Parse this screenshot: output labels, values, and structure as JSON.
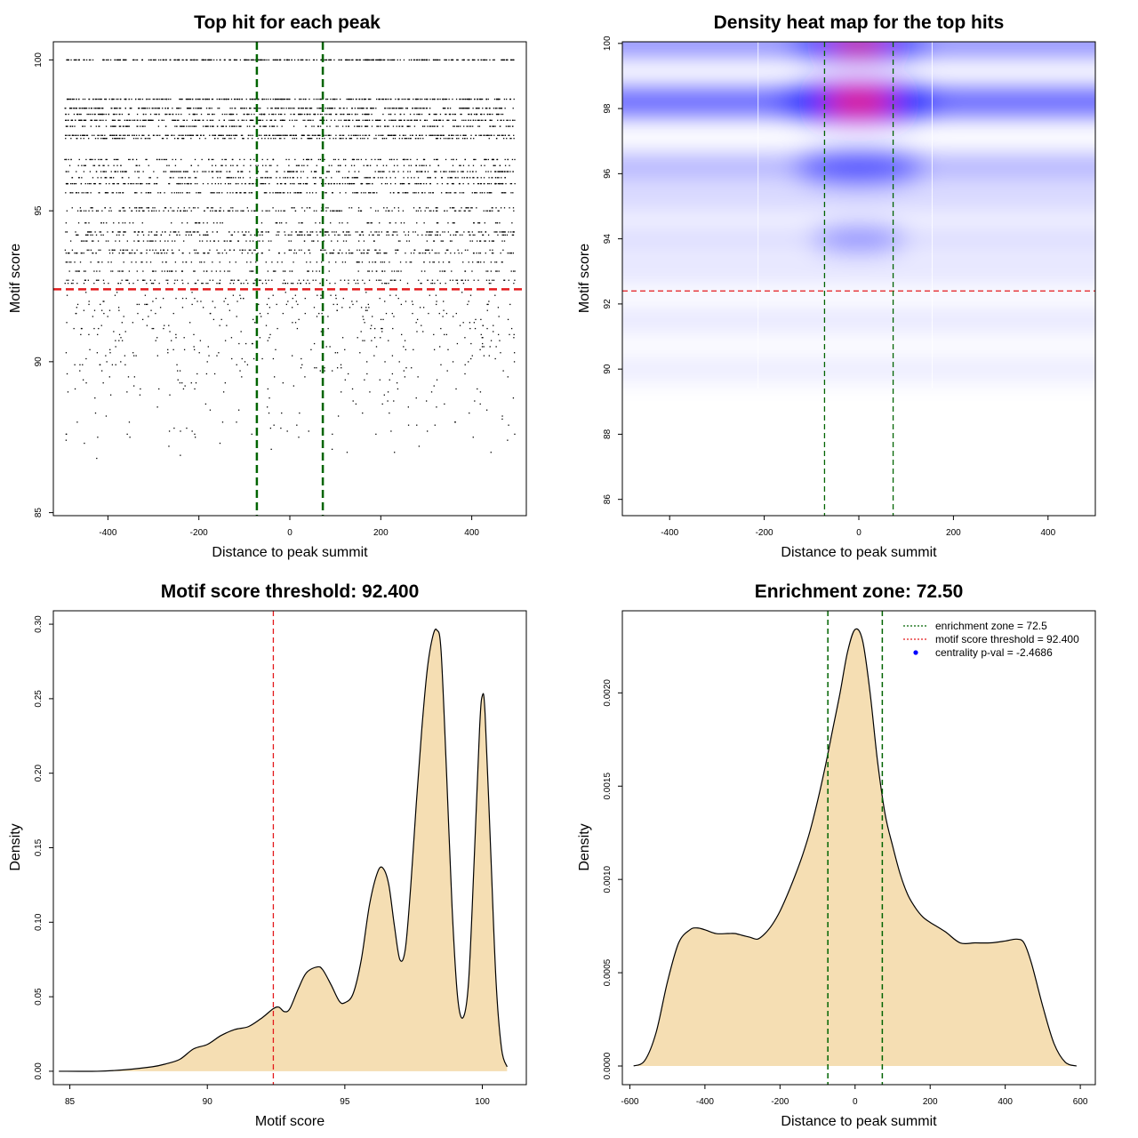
{
  "colors": {
    "threshold": "#e31a1c",
    "zone": "#006400",
    "fill": "#f5deb3",
    "points": "#000000",
    "heat_low": "#ffffff",
    "heat_mid": "#0000ff",
    "heat_high": "#ff0000",
    "legend_point": "#0000ff"
  },
  "chart_data": [
    {
      "type": "scatter",
      "title": "Top hit for each peak",
      "xlabel": "Distance to peak summit",
      "ylabel": "Motif score",
      "xlim": [
        -500,
        500
      ],
      "ylim": [
        85,
        100
      ],
      "xticks": [
        "-400",
        "-200",
        "0",
        "200",
        "400"
      ],
      "yticks": [
        "85",
        "90",
        "95",
        "100"
      ],
      "score_levels": [
        {
          "y": 100.0,
          "n": 360
        },
        {
          "y": 98.7,
          "n": 300
        },
        {
          "y": 98.4,
          "n": 280
        },
        {
          "y": 98.2,
          "n": 220
        },
        {
          "y": 98.0,
          "n": 260
        },
        {
          "y": 97.8,
          "n": 200
        },
        {
          "y": 97.5,
          "n": 300
        },
        {
          "y": 97.4,
          "n": 160
        },
        {
          "y": 96.7,
          "n": 140
        },
        {
          "y": 96.5,
          "n": 100
        },
        {
          "y": 96.3,
          "n": 180
        },
        {
          "y": 96.1,
          "n": 150
        },
        {
          "y": 95.9,
          "n": 220
        },
        {
          "y": 95.6,
          "n": 190
        },
        {
          "y": 95.1,
          "n": 90
        },
        {
          "y": 95.0,
          "n": 140
        },
        {
          "y": 94.6,
          "n": 80
        },
        {
          "y": 94.3,
          "n": 170
        },
        {
          "y": 94.2,
          "n": 120
        },
        {
          "y": 94.0,
          "n": 100
        },
        {
          "y": 93.7,
          "n": 90
        },
        {
          "y": 93.6,
          "n": 130
        },
        {
          "y": 93.3,
          "n": 90
        },
        {
          "y": 93.0,
          "n": 100
        },
        {
          "y": 92.7,
          "n": 90
        },
        {
          "y": 92.6,
          "n": 80
        }
      ],
      "scatter_range": [
        86.3,
        92.3
      ],
      "threshold_y": 92.4,
      "zone_x": [
        -72.5,
        72.5
      ]
    },
    {
      "type": "heatmap",
      "title": "Density heat map for the top hits",
      "xlabel": "Distance to peak summit",
      "ylabel": "Motif score",
      "xlim": [
        -500,
        500
      ],
      "ylim": [
        85.5,
        100
      ],
      "xticks": [
        "-400",
        "-200",
        "0",
        "200",
        "400"
      ],
      "yticks": [
        "86",
        "88",
        "90",
        "92",
        "94",
        "96",
        "98",
        "100"
      ],
      "threshold_y": 92.4,
      "zone_x": [
        -72.5,
        72.5
      ],
      "bands": [
        {
          "y": 100.0,
          "strength": 0.75
        },
        {
          "y": 98.2,
          "strength": 1.0
        },
        {
          "y": 96.2,
          "strength": 0.5
        },
        {
          "y": 95.2,
          "strength": 0.25
        },
        {
          "y": 94.0,
          "strength": 0.2
        },
        {
          "y": 93.0,
          "strength": 0.12
        },
        {
          "y": 91.5,
          "strength": 0.08
        },
        {
          "y": 90.0,
          "strength": 0.05
        }
      ],
      "hotspots": [
        {
          "x": 0,
          "y": 98.2,
          "strength": 1.0
        },
        {
          "x": 0,
          "y": 100.0,
          "strength": 0.8
        },
        {
          "x": 0,
          "y": 96.2,
          "strength": 0.7
        },
        {
          "x": 0,
          "y": 94.0,
          "strength": 0.4
        }
      ]
    },
    {
      "type": "area",
      "title": "Motif score threshold: 92.400",
      "xlabel": "Motif score",
      "ylabel": "Density",
      "xlim": [
        84.5,
        101
      ],
      "ylim": [
        0,
        0.3
      ],
      "xticks": [
        "85",
        "90",
        "95",
        "100"
      ],
      "yticks": [
        "0.00",
        "0.05",
        "0.10",
        "0.15",
        "0.20",
        "0.25",
        "0.30"
      ],
      "threshold_x": 92.4,
      "x": [
        84.6,
        86,
        87,
        88,
        88.5,
        89,
        89.5,
        90,
        90.5,
        91,
        91.5,
        92,
        92.4,
        92.6,
        92.8,
        93,
        93.3,
        93.6,
        94,
        94.2,
        94.5,
        94.8,
        95,
        95.3,
        95.6,
        95.9,
        96.2,
        96.4,
        96.6,
        96.8,
        97,
        97.2,
        97.4,
        97.6,
        97.8,
        98,
        98.2,
        98.35,
        98.5,
        98.7,
        98.9,
        99.1,
        99.3,
        99.5,
        99.7,
        99.9,
        100.0,
        100.1,
        100.3,
        100.5,
        100.7,
        100.9
      ],
      "values": [
        0.0,
        0.0,
        0.001,
        0.003,
        0.005,
        0.008,
        0.015,
        0.018,
        0.024,
        0.028,
        0.03,
        0.036,
        0.042,
        0.043,
        0.04,
        0.042,
        0.055,
        0.066,
        0.07,
        0.068,
        0.058,
        0.047,
        0.046,
        0.052,
        0.075,
        0.112,
        0.134,
        0.136,
        0.125,
        0.098,
        0.075,
        0.082,
        0.125,
        0.18,
        0.23,
        0.27,
        0.292,
        0.296,
        0.282,
        0.2,
        0.11,
        0.05,
        0.036,
        0.06,
        0.14,
        0.23,
        0.252,
        0.24,
        0.15,
        0.06,
        0.015,
        0.003
      ]
    },
    {
      "type": "area",
      "title": "Enrichment zone: 72.50",
      "xlabel": "Distance to peak summit",
      "ylabel": "Density",
      "xlim": [
        -600,
        600
      ],
      "ylim": [
        0,
        0.0024
      ],
      "xticks": [
        "-600",
        "-400",
        "-200",
        "0",
        "200",
        "400",
        "600"
      ],
      "yticks": [
        "0.0000",
        "0.0005",
        "0.0010",
        "0.0015",
        "0.0020"
      ],
      "zone_x": [
        -72.5,
        72.5
      ],
      "x": [
        -590,
        -560,
        -530,
        -500,
        -470,
        -440,
        -420,
        -400,
        -370,
        -340,
        -320,
        -300,
        -280,
        -260,
        -240,
        -220,
        -200,
        -180,
        -160,
        -140,
        -120,
        -100,
        -80,
        -60,
        -40,
        -20,
        0,
        20,
        40,
        60,
        80,
        100,
        120,
        140,
        160,
        180,
        200,
        240,
        280,
        320,
        360,
        400,
        430,
        450,
        470,
        500,
        530,
        560,
        590
      ],
      "values": [
        0.0,
        3e-05,
        0.00018,
        0.00045,
        0.00066,
        0.00073,
        0.00074,
        0.00073,
        0.00071,
        0.00071,
        0.00071,
        0.0007,
        0.00069,
        0.00068,
        0.00071,
        0.00076,
        0.00083,
        0.00092,
        0.00102,
        0.00113,
        0.00126,
        0.00142,
        0.0016,
        0.0018,
        0.002,
        0.00222,
        0.00234,
        0.00228,
        0.002,
        0.00163,
        0.00135,
        0.00118,
        0.00103,
        0.00092,
        0.00085,
        0.0008,
        0.00077,
        0.00072,
        0.00066,
        0.00066,
        0.00066,
        0.00067,
        0.00068,
        0.00066,
        0.00055,
        0.00032,
        0.00012,
        2e-05,
        0.0
      ],
      "legend": [
        {
          "label": "enrichment zone = 72.5"
        },
        {
          "label": "motif score threshold = 92.400"
        },
        {
          "label": "centrality p-val = -2.4686"
        }
      ]
    }
  ]
}
